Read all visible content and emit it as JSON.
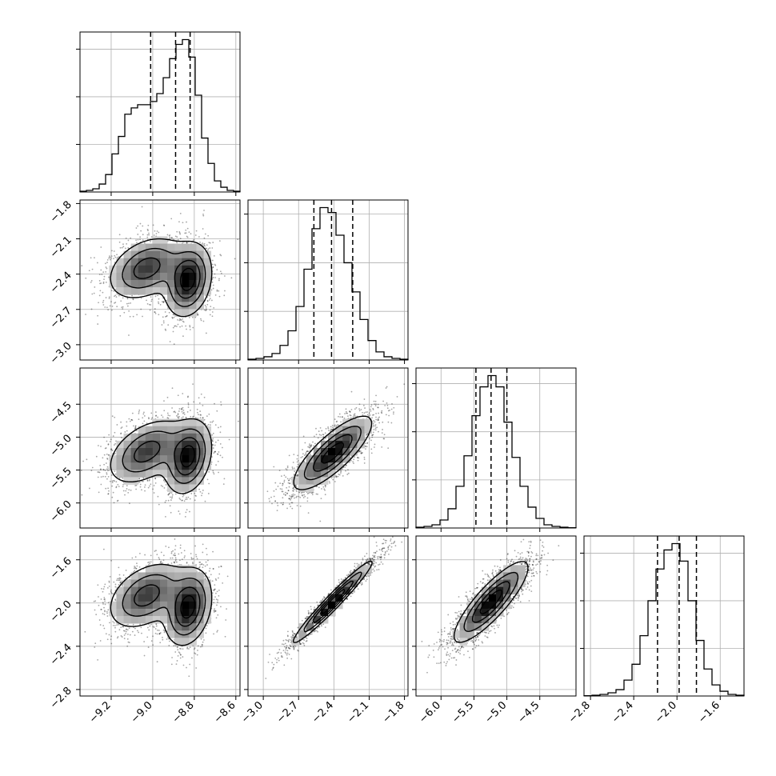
{
  "chart_data": {
    "type": "corner",
    "title": "",
    "grid": true,
    "colors": {
      "ink": "#000000",
      "grid": "#b0b0b0",
      "background": "#ffffff"
    },
    "parameters": [
      {
        "range": [
          -9.35,
          -8.58
        ],
        "ticks": [
          -9.2,
          -9.0,
          -8.8,
          -8.6
        ],
        "tick_labels": [
          "−9.2",
          "−9.0",
          "−8.8",
          "−8.6"
        ],
        "quantiles": [
          -9.01,
          -8.89,
          -8.82
        ],
        "hist_bins": [
          0.005,
          0.01,
          0.02,
          0.05,
          0.11,
          0.24,
          0.35,
          0.49,
          0.53,
          0.55,
          0.55,
          0.57,
          0.62,
          0.72,
          0.84,
          0.93,
          0.96,
          0.85,
          0.61,
          0.34,
          0.18,
          0.07,
          0.03,
          0.01,
          0.005
        ]
      },
      {
        "range": [
          -3.13,
          -1.77
        ],
        "ticks": [
          -3.0,
          -2.7,
          -2.4,
          -2.1,
          -1.8
        ],
        "tick_labels": [
          "−3.0",
          "−2.7",
          "−2.4",
          "−2.1",
          "−1.8"
        ],
        "quantiles": [
          -2.57,
          -2.42,
          -2.24
        ],
        "hist_bins": [
          0.005,
          0.01,
          0.02,
          0.04,
          0.09,
          0.18,
          0.33,
          0.56,
          0.81,
          0.94,
          0.91,
          0.77,
          0.6,
          0.42,
          0.25,
          0.12,
          0.05,
          0.02,
          0.01,
          0.005
        ]
      },
      {
        "range": [
          -6.38,
          -3.95
        ],
        "ticks": [
          -6.0,
          -5.5,
          -5.0,
          -4.5
        ],
        "tick_labels": [
          "−6.0",
          "−5.5",
          "−5.0",
          "−4.5"
        ],
        "quantiles": [
          -5.47,
          -5.24,
          -5.0
        ],
        "hist_bins": [
          0.005,
          0.01,
          0.02,
          0.05,
          0.12,
          0.26,
          0.45,
          0.7,
          0.88,
          0.95,
          0.88,
          0.66,
          0.44,
          0.26,
          0.13,
          0.06,
          0.02,
          0.01,
          0.005,
          0.002
        ]
      },
      {
        "range": [
          -2.86,
          -1.38
        ],
        "ticks": [
          -2.8,
          -2.4,
          -2.0,
          -1.6
        ],
        "tick_labels": [
          "−2.8",
          "−2.4",
          "−2.0",
          "−1.6"
        ],
        "quantiles": [
          -2.18,
          -1.98,
          -1.82
        ],
        "hist_bins": [
          0.002,
          0.005,
          0.01,
          0.02,
          0.04,
          0.1,
          0.2,
          0.38,
          0.6,
          0.8,
          0.92,
          0.96,
          0.85,
          0.6,
          0.35,
          0.17,
          0.07,
          0.03,
          0.01,
          0.005
        ]
      }
    ],
    "pairs": [
      {
        "x": 0,
        "y": 1,
        "modes": [
          {
            "mx": -9.03,
            "my": -2.35,
            "sx": 0.09,
            "sy": 0.13,
            "r": 0.35,
            "w": 0.5
          },
          {
            "mx": -8.83,
            "my": -2.45,
            "sx": 0.055,
            "sy": 0.15,
            "r": 0.2,
            "w": 0.5
          }
        ]
      },
      {
        "x": 0,
        "y": 2,
        "modes": [
          {
            "mx": -9.03,
            "my": -5.22,
            "sx": 0.09,
            "sy": 0.24,
            "r": 0.45,
            "w": 0.5
          },
          {
            "mx": -8.83,
            "my": -5.3,
            "sx": 0.055,
            "sy": 0.27,
            "r": 0.25,
            "w": 0.5
          }
        ]
      },
      {
        "x": 0,
        "y": 3,
        "modes": [
          {
            "mx": -9.03,
            "my": -1.93,
            "sx": 0.09,
            "sy": 0.15,
            "r": 0.4,
            "w": 0.5
          },
          {
            "mx": -8.83,
            "my": -2.04,
            "sx": 0.055,
            "sy": 0.17,
            "r": 0.25,
            "w": 0.5
          }
        ]
      },
      {
        "x": 1,
        "y": 2,
        "modes": [
          {
            "mx": -2.41,
            "my": -5.24,
            "sx": 0.16,
            "sy": 0.27,
            "r": 0.8,
            "w": 1
          }
        ]
      },
      {
        "x": 1,
        "y": 3,
        "modes": [
          {
            "mx": -2.41,
            "my": -1.99,
            "sx": 0.16,
            "sy": 0.18,
            "r": 0.97,
            "w": 1
          }
        ]
      },
      {
        "x": 2,
        "y": 3,
        "modes": [
          {
            "mx": -5.24,
            "my": -1.99,
            "sx": 0.27,
            "sy": 0.18,
            "r": 0.85,
            "w": 1
          }
        ]
      }
    ]
  }
}
